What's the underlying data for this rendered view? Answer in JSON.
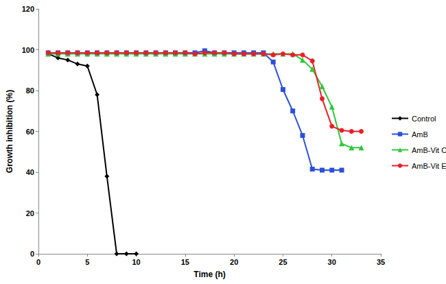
{
  "chart_data": {
    "type": "line",
    "x_label": "Time (h)",
    "y_label": "Growth inhibition (%)",
    "x": [
      1,
      2,
      3,
      4,
      5,
      6,
      7,
      8,
      9,
      10,
      11,
      12,
      13,
      14,
      15,
      16,
      17,
      18,
      19,
      20,
      21,
      22,
      23,
      24,
      25,
      26,
      27,
      28,
      29,
      30,
      31,
      32,
      33
    ],
    "series": [
      {
        "name": "Control",
        "color": "#000000",
        "marker": "diamond",
        "values": [
          98,
          96,
          95,
          93,
          92,
          78,
          38,
          0,
          0,
          0,
          null,
          null,
          null,
          null,
          null,
          null,
          null,
          null,
          null,
          null,
          null,
          null,
          null,
          null,
          null,
          null,
          null,
          null,
          null,
          null,
          null,
          null,
          null
        ]
      },
      {
        "name": "AmB",
        "color": "#2b50d8",
        "marker": "square",
        "values": [
          98.5,
          98.5,
          98.5,
          98.5,
          98.5,
          98.5,
          98.5,
          98.5,
          98.5,
          98.5,
          98.5,
          98.5,
          98.5,
          98.5,
          98.5,
          98.5,
          99.5,
          98.5,
          98.5,
          98.5,
          98.5,
          98.5,
          98.5,
          94,
          80.5,
          70,
          58,
          41.5,
          41,
          41,
          41,
          null,
          null
        ]
      },
      {
        "name": "AmB-Vit C",
        "color": "#2ec83a",
        "marker": "triangle",
        "values": [
          98,
          98,
          98,
          98,
          98,
          98,
          98,
          98,
          98,
          98,
          98,
          98,
          98,
          98,
          98,
          98,
          98,
          98,
          98,
          98,
          98,
          98,
          98,
          98,
          98,
          98,
          95,
          90.5,
          82,
          72,
          54,
          52,
          52
        ]
      },
      {
        "name": "AmB-Vit E",
        "color": "#e8202a",
        "marker": "circle",
        "values": [
          98.5,
          98.5,
          98.5,
          98.5,
          98.5,
          98.5,
          98.5,
          98.5,
          98.5,
          98.5,
          98.5,
          98.5,
          98.5,
          98.5,
          98.5,
          98,
          98.5,
          98.5,
          98.5,
          98,
          98,
          98,
          98,
          97.5,
          98,
          97.5,
          97.5,
          94.5,
          76,
          62.5,
          60.5,
          60,
          60
        ]
      }
    ],
    "xlim": [
      0,
      35
    ],
    "xticks": [
      0,
      5,
      10,
      15,
      20,
      25,
      30,
      35
    ],
    "ylim": [
      0,
      120
    ],
    "yticks": [
      0,
      20,
      40,
      60,
      80,
      100,
      120
    ],
    "grid": false,
    "legend": "right"
  }
}
